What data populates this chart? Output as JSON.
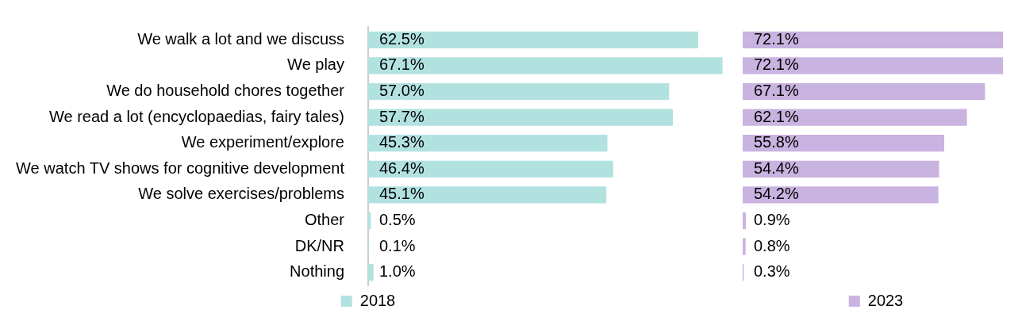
{
  "chart_data": [
    {
      "type": "bar",
      "orientation": "horizontal",
      "categories": [
        "We walk a lot and we discuss",
        "We play",
        "We do household chores together",
        "We read a lot (encyclopaedias, fairy tales)",
        "We experiment/explore",
        "We watch TV shows for cognitive development",
        "We solve exercises/problems",
        "Other",
        "DK/NR",
        "Nothing"
      ],
      "series": [
        {
          "name": "2018",
          "color": "#b2e2e0",
          "values": [
            62.5,
            67.1,
            57.0,
            57.7,
            45.3,
            46.4,
            45.1,
            0.5,
            0.1,
            1.0
          ],
          "value_labels": [
            "62.5%",
            "67.1%",
            "57.0%",
            "57.7%",
            "45.3%",
            "46.4%",
            "45.1%",
            "0.5%",
            "0.1%",
            "1.0%"
          ]
        }
      ],
      "tick_labels": "y",
      "legend": "bottom"
    },
    {
      "type": "bar",
      "orientation": "horizontal",
      "categories": [
        null,
        null,
        null,
        null,
        null,
        null,
        null,
        null,
        null,
        null
      ],
      "series": [
        {
          "name": "2023",
          "color": "#c9b3e0",
          "values": [
            72.1,
            72.1,
            67.1,
            62.1,
            55.8,
            54.4,
            54.2,
            0.9,
            0.8,
            0.3
          ],
          "value_labels": [
            "72.1%",
            "72.1%",
            "67.1%",
            "62.1%",
            "55.8%",
            "54.4%",
            "54.2%",
            "0.9%",
            "0.8%",
            "0.3%"
          ]
        }
      ],
      "tick_labels": false,
      "legend": "bottom"
    }
  ]
}
